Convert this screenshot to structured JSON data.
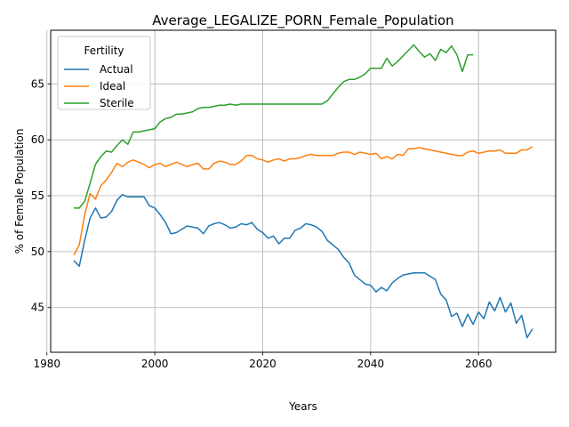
{
  "chart_data": {
    "type": "line",
    "title": "Average_LEGALIZE_PORN_Female_Population",
    "xlabel": "Years",
    "ylabel": "% of Female Population",
    "xlim": [
      1980.7,
      2074.3
    ],
    "ylim": [
      41.0,
      69.8
    ],
    "x_ticks": [
      1980,
      2000,
      2020,
      2040,
      2060
    ],
    "y_ticks": [
      45,
      50,
      55,
      60,
      65
    ],
    "grid": true,
    "legend": {
      "title": "Fertility",
      "placement": "top-left"
    },
    "series": [
      {
        "name": "Actual",
        "color": "#1f77b4",
        "x": [
          1985,
          1986,
          1987,
          1988,
          1989,
          1990,
          1991,
          1992,
          1993,
          1994,
          1995,
          1996,
          1997,
          1998,
          1999,
          2000,
          2001,
          2002,
          2003,
          2004,
          2005,
          2006,
          2007,
          2008,
          2009,
          2010,
          2011,
          2012,
          2013,
          2014,
          2015,
          2016,
          2017,
          2018,
          2019,
          2020,
          2021,
          2022,
          2023,
          2024,
          2025,
          2026,
          2027,
          2028,
          2029,
          2030,
          2031,
          2032,
          2033,
          2034,
          2035,
          2036,
          2037,
          2038,
          2039,
          2040,
          2041,
          2042,
          2043,
          2044,
          2045,
          2046,
          2047,
          2048,
          2049,
          2050,
          2051,
          2052,
          2053,
          2054,
          2055,
          2056,
          2057,
          2058,
          2059,
          2060,
          2061,
          2062,
          2063,
          2064,
          2065,
          2066,
          2067,
          2068,
          2069,
          2070
        ],
        "values": [
          49.2,
          48.7,
          51.0,
          53.0,
          53.9,
          53.0,
          53.1,
          53.6,
          54.6,
          55.1,
          54.9,
          54.9,
          54.9,
          54.9,
          54.1,
          53.9,
          53.3,
          52.6,
          51.6,
          51.7,
          52.0,
          52.3,
          52.2,
          52.1,
          51.6,
          52.3,
          52.5,
          52.6,
          52.4,
          52.1,
          52.2,
          52.5,
          52.4,
          52.6,
          52.0,
          51.7,
          51.2,
          51.4,
          50.7,
          51.2,
          51.2,
          51.9,
          52.1,
          52.5,
          52.4,
          52.2,
          51.8,
          51.0,
          50.6,
          50.2,
          49.5,
          49.0,
          47.9,
          47.5,
          47.1,
          47.0,
          46.4,
          46.8,
          46.5,
          47.2,
          47.6,
          47.9,
          48.0,
          48.1,
          48.1,
          48.1,
          47.8,
          47.5,
          46.2,
          45.7,
          44.2,
          44.5,
          43.3,
          44.4,
          43.5,
          44.6,
          44.0,
          45.5,
          44.7,
          45.9,
          44.6,
          45.4,
          43.6,
          44.3,
          42.3,
          43.1
        ]
      },
      {
        "name": "Ideal",
        "color": "#ff7f0e",
        "x": [
          1985,
          1986,
          1987,
          1988,
          1989,
          1990,
          1991,
          1992,
          1993,
          1994,
          1995,
          1996,
          1997,
          1998,
          1999,
          2000,
          2001,
          2002,
          2003,
          2004,
          2005,
          2006,
          2007,
          2008,
          2009,
          2010,
          2011,
          2012,
          2013,
          2014,
          2015,
          2016,
          2017,
          2018,
          2019,
          2020,
          2021,
          2022,
          2023,
          2024,
          2025,
          2026,
          2027,
          2028,
          2029,
          2030,
          2031,
          2032,
          2033,
          2034,
          2035,
          2036,
          2037,
          2038,
          2039,
          2040,
          2041,
          2042,
          2043,
          2044,
          2045,
          2046,
          2047,
          2048,
          2049,
          2050,
          2051,
          2052,
          2053,
          2054,
          2055,
          2056,
          2057,
          2058,
          2059,
          2060,
          2061,
          2062,
          2063,
          2064,
          2065,
          2066,
          2067,
          2068,
          2069,
          2070
        ],
        "values": [
          49.7,
          50.6,
          53.3,
          55.2,
          54.7,
          55.9,
          56.4,
          57.1,
          57.9,
          57.6,
          58.0,
          58.2,
          58.0,
          57.8,
          57.5,
          57.8,
          57.9,
          57.6,
          57.8,
          58.0,
          57.8,
          57.6,
          57.8,
          57.9,
          57.4,
          57.4,
          57.9,
          58.1,
          58.0,
          57.8,
          57.8,
          58.1,
          58.6,
          58.6,
          58.3,
          58.2,
          58.0,
          58.2,
          58.3,
          58.1,
          58.3,
          58.3,
          58.4,
          58.6,
          58.7,
          58.6,
          58.6,
          58.6,
          58.6,
          58.8,
          58.9,
          58.9,
          58.7,
          58.9,
          58.8,
          58.7,
          58.8,
          58.3,
          58.5,
          58.3,
          58.7,
          58.6,
          59.2,
          59.2,
          59.3,
          59.2,
          59.1,
          59.0,
          58.9,
          58.8,
          58.7,
          58.6,
          58.6,
          58.9,
          59.0,
          58.8,
          58.9,
          59.0,
          59.0,
          59.1,
          58.8,
          58.8,
          58.8,
          59.1,
          59.1,
          59.4
        ]
      },
      {
        "name": "Sterile",
        "color": "#2ca02c",
        "x": [
          1985,
          1986,
          1987,
          1988,
          1989,
          1990,
          1991,
          1992,
          1993,
          1994,
          1995,
          1996,
          1997,
          1998,
          1999,
          2000,
          2001,
          2002,
          2003,
          2004,
          2005,
          2006,
          2007,
          2008,
          2009,
          2010,
          2011,
          2012,
          2013,
          2014,
          2015,
          2016,
          2017,
          2018,
          2019,
          2020,
          2021,
          2022,
          2023,
          2024,
          2025,
          2026,
          2027,
          2028,
          2029,
          2030,
          2031,
          2032,
          2033,
          2034,
          2035,
          2036,
          2037,
          2038,
          2039,
          2040,
          2041,
          2042,
          2043,
          2044,
          2045,
          2046,
          2047,
          2048,
          2049,
          2050,
          2051,
          2052,
          2053,
          2054,
          2055,
          2056,
          2057,
          2058,
          2059
        ],
        "values": [
          53.9,
          53.9,
          54.5,
          56.1,
          57.8,
          58.5,
          59.0,
          58.9,
          59.5,
          60.0,
          59.6,
          60.7,
          60.7,
          60.8,
          60.9,
          61.0,
          61.6,
          61.9,
          62.0,
          62.3,
          62.3,
          62.4,
          62.5,
          62.8,
          62.9,
          62.9,
          63.0,
          63.1,
          63.1,
          63.2,
          63.1,
          63.2,
          63.2,
          63.2,
          63.2,
          63.2,
          63.2,
          63.2,
          63.2,
          63.2,
          63.2,
          63.2,
          63.2,
          63.2,
          63.2,
          63.2,
          63.2,
          63.5,
          64.1,
          64.7,
          65.2,
          65.4,
          65.4,
          65.6,
          65.9,
          66.4,
          66.4,
          66.4,
          67.3,
          66.6,
          67.0,
          67.5,
          68.0,
          68.5,
          67.9,
          67.4,
          67.7,
          67.1,
          68.1,
          67.8,
          68.4,
          67.6,
          66.1,
          67.6,
          67.6
        ]
      }
    ]
  }
}
